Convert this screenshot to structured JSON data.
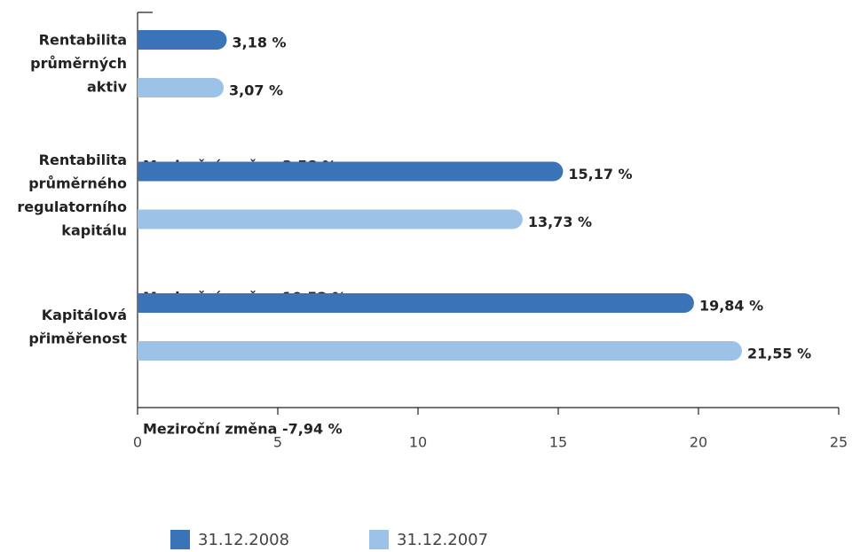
{
  "chart_data": {
    "type": "hbar",
    "categories": [
      "Rentabilita průměrných aktiv",
      "Rentabilita průměrného regulatorního kapitálu",
      "Kapitálová přiměřenost"
    ],
    "series": [
      {
        "name": "31.12.2008",
        "color": "#3a73b8",
        "values": [
          3.18,
          15.17,
          19.84
        ],
        "value_labels": [
          "3,18 %",
          "15,17 %",
          "19,84 %"
        ]
      },
      {
        "name": "31.12.2007",
        "color": "#9cc3e7",
        "values": [
          3.07,
          13.73,
          21.55
        ],
        "value_labels": [
          "3,07 %",
          "13,73 %",
          "21,55 %"
        ]
      }
    ],
    "annotations": [
      "Meziroční změna 3,58 %",
      "Meziroční změna 10,52 %",
      "Meziroční změna -7,94 %"
    ],
    "xlim": [
      0,
      25
    ],
    "xticks": [
      0,
      5,
      10,
      15,
      20,
      25
    ],
    "legend": "bottom"
  }
}
